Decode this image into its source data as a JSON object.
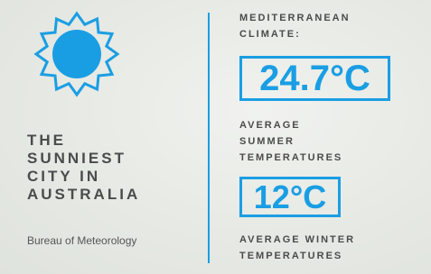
{
  "left": {
    "headline_lines": [
      "THE",
      "SUNNIEST",
      "CITY IN",
      "AUSTRALIA"
    ],
    "source": "Bureau of Meteorology"
  },
  "right": {
    "climate_lines": [
      "MEDITERRANEAN",
      "CLIMATE:"
    ],
    "summer": {
      "value": "24.7°C",
      "label_lines": [
        "AVERAGE",
        "SUMMER",
        "TEMPERATURES"
      ]
    },
    "winter": {
      "value": "12°C",
      "label_lines": [
        "AVERAGE WINTER",
        "TEMPERATURES"
      ]
    }
  }
}
